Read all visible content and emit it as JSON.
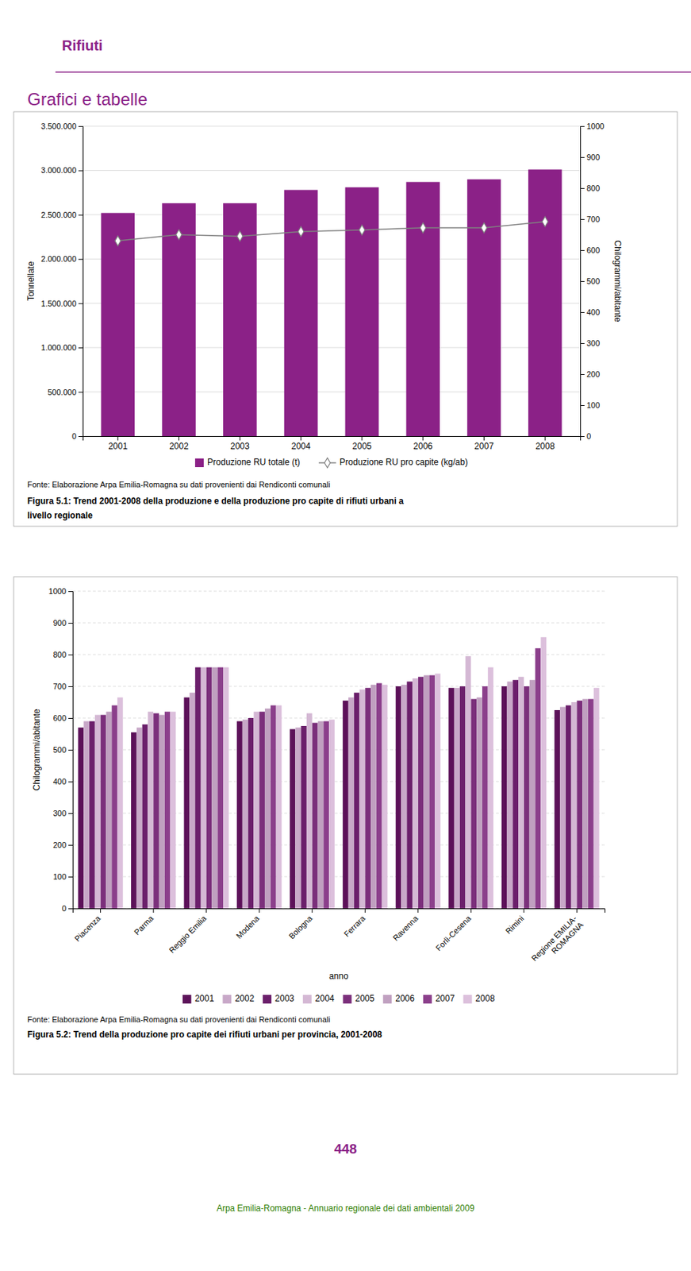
{
  "header_title": "Rifiuti",
  "section_title": "Grafici e tabelle",
  "page_number": "448",
  "footer_text": "Arpa Emilia-Romagna - Annuario regionale dei dati ambientali 2009",
  "chart_data": [
    {
      "type": "bar",
      "categories": [
        "2001",
        "2002",
        "2003",
        "2004",
        "2005",
        "2006",
        "2007",
        "2008"
      ],
      "series": [
        {
          "name": "Produzione RU totale (t)",
          "type": "bar",
          "color": "#8B2187",
          "values": [
            2520000,
            2630000,
            2630000,
            2780000,
            2810000,
            2870000,
            2900000,
            3010000
          ]
        },
        {
          "name": "Produzione RU pro capite (kg/ab)",
          "type": "line",
          "axis": "y2",
          "color": "#808080",
          "marker": "diamond",
          "values": [
            630,
            650,
            645,
            660,
            665,
            672,
            672,
            692
          ]
        }
      ],
      "ylabel": "Tonnellate",
      "y2label": "Chilogrammi/abitante",
      "ylim": [
        0,
        3500000
      ],
      "yticks": [
        0,
        {
          "value": 500000,
          "label": "500.000"
        },
        {
          "value": 1000000,
          "label": "1.000.000"
        },
        {
          "value": 1500000,
          "label": "1.500.000"
        },
        {
          "value": 2000000,
          "label": "2.000.000"
        },
        {
          "value": 2500000,
          "label": "2.500.000"
        },
        {
          "value": 3000000,
          "label": "3.000.000"
        },
        {
          "value": 3500000,
          "label": "3.500.000"
        }
      ],
      "y2lim": [
        0,
        1000
      ],
      "y2ticks": [
        0,
        100,
        200,
        300,
        400,
        500,
        600,
        700,
        800,
        900,
        1000
      ],
      "grid": true,
      "legend": "bottom",
      "annotations": [
        "Fonte: Elaborazione Arpa Emilia-Romagna su dati provenienti dai Rendiconti comunali",
        "Figura 5.1: Trend 2001-2008 della produzione e della produzione pro capite di rifiuti urbani a",
        "livello regionale"
      ]
    },
    {
      "type": "bar",
      "categories": [
        "Piacenza",
        "Parma",
        "Reggio Emilia",
        "Modena",
        "Bologna",
        "Ferrara",
        "Ravenna",
        "Forlì-Cesena",
        "Rimini",
        "Regione EMILIA-\nROMAGNA"
      ],
      "series": [
        {
          "name": "2001",
          "color": "#5C1159",
          "values": [
            570,
            555,
            665,
            590,
            565,
            655,
            700,
            695,
            700,
            625
          ]
        },
        {
          "name": "2002",
          "color": "#C8A8C8",
          "values": [
            590,
            570,
            680,
            595,
            570,
            665,
            705,
            695,
            715,
            635
          ]
        },
        {
          "name": "2003",
          "color": "#6B1F6B",
          "values": [
            590,
            580,
            760,
            600,
            575,
            680,
            715,
            700,
            720,
            640
          ]
        },
        {
          "name": "2004",
          "color": "#D4B8D4",
          "values": [
            610,
            620,
            760,
            620,
            615,
            690,
            725,
            795,
            730,
            650
          ]
        },
        {
          "name": "2005",
          "color": "#7B2F7B",
          "values": [
            610,
            615,
            760,
            620,
            585,
            695,
            730,
            660,
            700,
            655
          ]
        },
        {
          "name": "2006",
          "color": "#C0A0C0",
          "values": [
            620,
            610,
            760,
            630,
            590,
            705,
            735,
            665,
            720,
            660
          ]
        },
        {
          "name": "2007",
          "color": "#8B3F8B",
          "values": [
            640,
            620,
            760,
            640,
            590,
            710,
            735,
            700,
            820,
            660
          ]
        },
        {
          "name": "2008",
          "color": "#DCC0DC",
          "values": [
            665,
            620,
            760,
            640,
            595,
            705,
            740,
            760,
            855,
            695
          ]
        }
      ],
      "ylabel": "Chilogrammi/abitante",
      "xlabel": "anno",
      "ylim": [
        0,
        1000
      ],
      "yticks": [
        0,
        100,
        200,
        300,
        400,
        500,
        600,
        700,
        800,
        900,
        1000
      ],
      "grid": true,
      "legend": "bottom",
      "annotations": [
        "Fonte: Elaborazione Arpa Emilia-Romagna su dati provenienti dai Rendiconti comunali",
        "Figura 5.2: Trend della produzione pro capite dei rifiuti urbani per provincia, 2001-2008"
      ]
    }
  ]
}
